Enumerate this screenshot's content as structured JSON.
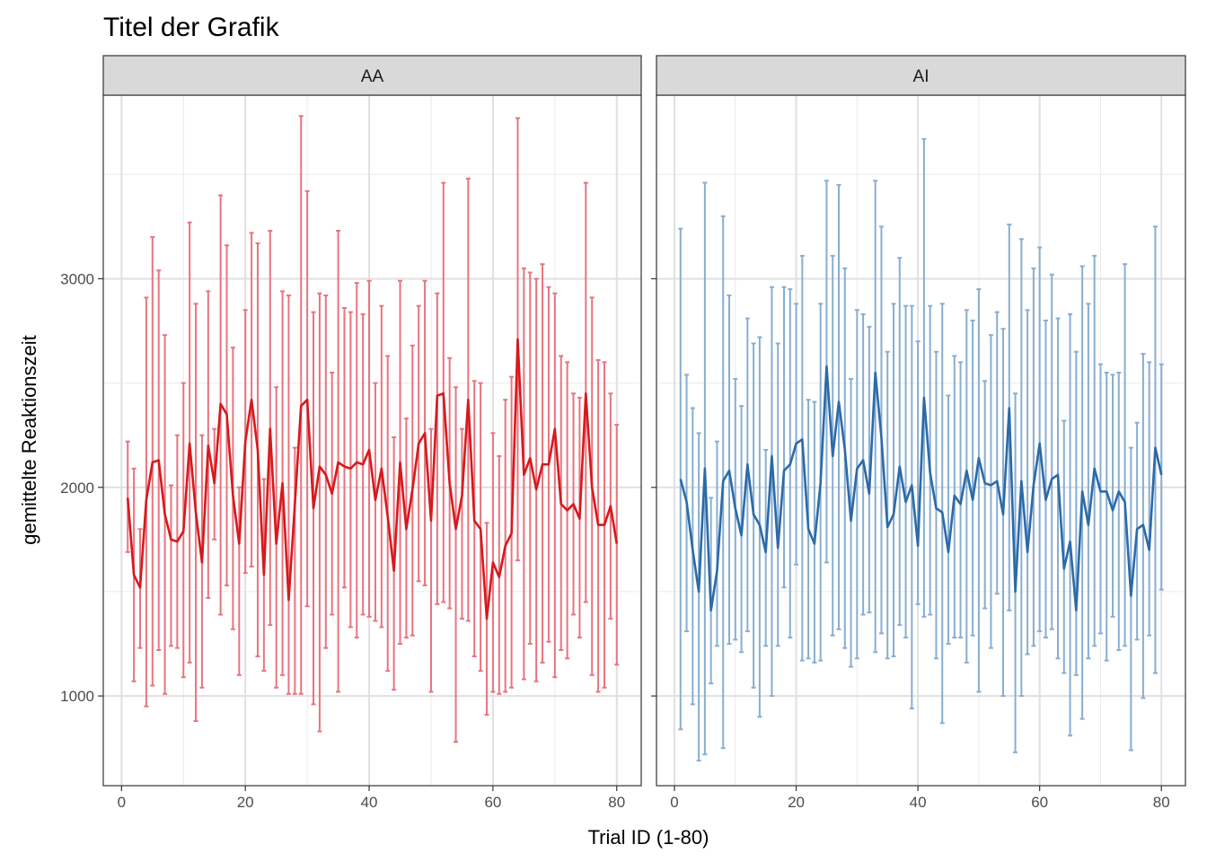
{
  "chart_data": {
    "type": "line",
    "title": "Titel der Grafik",
    "xlabel": "Trial ID (1-80)",
    "ylabel": "gemittelte Reaktionszeit",
    "xlim": [
      -2.95,
      83.95
    ],
    "ylim": [
      570,
      3880
    ],
    "x_ticks": [
      0,
      20,
      40,
      60,
      80
    ],
    "y_ticks": [
      1000,
      2000,
      3000
    ],
    "grid": true,
    "legend": "none",
    "facets": [
      {
        "label": "AA",
        "color": "#d7191c",
        "errorbar_color": "#e8747f",
        "x": [
          1,
          2,
          3,
          4,
          5,
          6,
          7,
          8,
          9,
          10,
          11,
          12,
          13,
          14,
          15,
          16,
          17,
          18,
          19,
          20,
          21,
          22,
          23,
          24,
          25,
          26,
          27,
          28,
          29,
          30,
          31,
          32,
          33,
          34,
          35,
          36,
          37,
          38,
          39,
          40,
          41,
          42,
          43,
          44,
          45,
          46,
          47,
          48,
          49,
          50,
          51,
          52,
          53,
          54,
          55,
          56,
          57,
          58,
          59,
          60,
          61,
          62,
          63,
          64,
          65,
          66,
          67,
          68,
          69,
          70,
          71,
          72,
          73,
          74,
          75,
          76,
          77,
          78,
          79,
          80
        ],
        "mean": [
          1950,
          1580,
          1520,
          1940,
          2120,
          2130,
          1870,
          1750,
          1740,
          1790,
          2210,
          1880,
          1640,
          2200,
          2020,
          2400,
          2350,
          1960,
          1730,
          2220,
          2420,
          2180,
          1580,
          2280,
          1730,
          2020,
          1460,
          1920,
          2390,
          2420,
          1900,
          2100,
          2060,
          1970,
          2120,
          2100,
          2090,
          2120,
          2110,
          2180,
          1940,
          2090,
          1860,
          1600,
          2120,
          1800,
          1990,
          2210,
          2260,
          1840,
          2440,
          2450,
          2020,
          1800,
          1960,
          2420,
          1840,
          1800,
          1370,
          1640,
          1570,
          1720,
          1780,
          2710,
          2060,
          2140,
          1990,
          2110,
          2110,
          2280,
          1920,
          1890,
          1920,
          1850,
          2450,
          2000,
          1820,
          1820,
          1910,
          1730
        ],
        "upper": [
          2220,
          2090,
          1800,
          2910,
          3200,
          3040,
          2730,
          2010,
          2250,
          2500,
          3270,
          2880,
          2250,
          2940,
          2280,
          3400,
          3160,
          2670,
          2000,
          2850,
          3220,
          3170,
          2040,
          3230,
          2480,
          2940,
          2920,
          2190,
          3780,
          3420,
          2840,
          2930,
          2920,
          2550,
          3230,
          2860,
          2840,
          2980,
          2830,
          2990,
          2500,
          2870,
          2630,
          2240,
          2990,
          2330,
          2680,
          2870,
          2990,
          2280,
          2930,
          3460,
          2620,
          2480,
          2280,
          3480,
          2510,
          2500,
          1830,
          2260,
          2150,
          2420,
          2530,
          3770,
          3050,
          3030,
          3000,
          3070,
          2960,
          2930,
          2630,
          2600,
          2450,
          2430,
          3460,
          2910,
          2610,
          2600,
          2450,
          2300
        ],
        "lower": [
          1690,
          1070,
          1230,
          950,
          1050,
          1220,
          1010,
          1240,
          1230,
          1090,
          1160,
          880,
          1040,
          1470,
          1750,
          1390,
          1530,
          1320,
          1100,
          1590,
          1620,
          1190,
          1120,
          1340,
          1040,
          1100,
          1010,
          1010,
          1010,
          1430,
          960,
          830,
          1230,
          1390,
          1020,
          1520,
          1330,
          1280,
          1390,
          1380,
          1360,
          1330,
          1120,
          1030,
          1250,
          1280,
          1290,
          1550,
          1530,
          1020,
          1440,
          1450,
          1420,
          780,
          1370,
          1360,
          1190,
          1120,
          910,
          1020,
          1010,
          1020,
          1040,
          1650,
          1080,
          1250,
          1070,
          1160,
          1260,
          1090,
          1220,
          1180,
          1390,
          1280,
          1450,
          1100,
          1020,
          1040,
          1370,
          1150
        ]
      },
      {
        "label": "AI",
        "color": "#2c6aa8",
        "errorbar_color": "#88aed1",
        "x": [
          1,
          2,
          3,
          4,
          5,
          6,
          7,
          8,
          9,
          10,
          11,
          12,
          13,
          14,
          15,
          16,
          17,
          18,
          19,
          20,
          21,
          22,
          23,
          24,
          25,
          26,
          27,
          28,
          29,
          30,
          31,
          32,
          33,
          34,
          35,
          36,
          37,
          38,
          39,
          40,
          41,
          42,
          43,
          44,
          45,
          46,
          47,
          48,
          49,
          50,
          51,
          52,
          53,
          54,
          55,
          56,
          57,
          58,
          59,
          60,
          61,
          62,
          63,
          64,
          65,
          66,
          67,
          68,
          69,
          70,
          71,
          72,
          73,
          74,
          75,
          76,
          77,
          78,
          79,
          80
        ],
        "mean": [
          2040,
          1930,
          1700,
          1500,
          2090,
          1410,
          1600,
          2030,
          2080,
          1900,
          1770,
          2110,
          1870,
          1820,
          1690,
          2150,
          1710,
          2080,
          2110,
          2210,
          2230,
          1800,
          1730,
          2020,
          2580,
          2150,
          2410,
          2180,
          1840,
          2090,
          2130,
          1970,
          2550,
          2240,
          1810,
          1870,
          2100,
          1930,
          2010,
          1720,
          2430,
          2070,
          1900,
          1880,
          1690,
          1960,
          1920,
          2080,
          1940,
          2140,
          2020,
          2010,
          2030,
          1870,
          2380,
          1500,
          2030,
          1690,
          2010,
          2210,
          1940,
          2040,
          2060,
          1610,
          1740,
          1410,
          1980,
          1820,
          2090,
          1980,
          1980,
          1890,
          1980,
          1930,
          1480,
          1800,
          1820,
          1700,
          2190,
          2060
        ],
        "upper": [
          3240,
          2540,
          2380,
          2260,
          3460,
          1950,
          2220,
          3300,
          2920,
          2520,
          2390,
          2810,
          2690,
          2720,
          2180,
          2960,
          2690,
          2960,
          2950,
          2880,
          3110,
          2420,
          2410,
          2880,
          3470,
          3110,
          3450,
          3050,
          2520,
          2850,
          2830,
          2770,
          3470,
          3250,
          2650,
          2880,
          3100,
          2870,
          2870,
          2700,
          3670,
          2870,
          2650,
          2880,
          2440,
          2630,
          2600,
          2850,
          2800,
          2950,
          2510,
          2730,
          2840,
          2760,
          3260,
          2450,
          3190,
          2850,
          3050,
          3150,
          2800,
          3020,
          2810,
          2320,
          2830,
          2650,
          3060,
          2880,
          3110,
          2590,
          2550,
          2540,
          2550,
          3070,
          2190,
          2310,
          2640,
          2600,
          3250,
          2590
        ],
        "lower": [
          840,
          1310,
          960,
          690,
          720,
          1060,
          1240,
          750,
          1250,
          1270,
          1210,
          1310,
          1040,
          900,
          1240,
          1000,
          1240,
          1520,
          1280,
          1630,
          1170,
          1180,
          1160,
          1170,
          1640,
          1290,
          1320,
          1230,
          1140,
          1180,
          1390,
          1400,
          1210,
          1300,
          1180,
          1190,
          1340,
          1280,
          940,
          1440,
          1380,
          1390,
          1180,
          870,
          1250,
          1280,
          1280,
          1160,
          1290,
          1020,
          1420,
          1230,
          1490,
          1000,
          1410,
          730,
          1000,
          1200,
          1240,
          1310,
          1280,
          1320,
          1180,
          1110,
          810,
          1100,
          890,
          1180,
          1240,
          1300,
          1170,
          1380,
          1220,
          1240,
          740,
          1270,
          990,
          1290,
          1110,
          1510
        ]
      }
    ]
  }
}
